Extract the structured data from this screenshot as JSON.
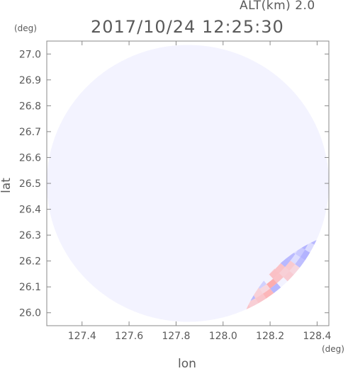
{
  "header": {
    "altitude": "ALT(km) 2.0",
    "datetime": "2017/10/24 12:25:30"
  },
  "colors": {
    "positive": "#ff9c9c",
    "negative": "#a6a6ff",
    "neutral": "#f3f3ff",
    "axis": "#888888",
    "text": "#5a5a5a"
  },
  "chart_data": {
    "type": "heatmap",
    "subtype": "polar radar scan (alternating positive/negative field)",
    "xlabel": "lon",
    "ylabel": "lat",
    "x_unit": "(deg)",
    "y_unit": "(deg)",
    "xlim": [
      127.25,
      128.45
    ],
    "ylim": [
      25.95,
      27.05
    ],
    "xticks": [
      127.4,
      127.6,
      127.8,
      128.0,
      128.2,
      128.4
    ],
    "xtick_labels": [
      "127.4",
      "127.6",
      "127.8",
      "128.0",
      "128.2",
      "128.4"
    ],
    "yticks": [
      26.0,
      26.1,
      26.2,
      26.3,
      26.4,
      26.5,
      26.6,
      26.7,
      26.8,
      26.9,
      27.0
    ],
    "ytick_labels": [
      "26.0",
      "26.1",
      "26.2",
      "26.3",
      "26.4",
      "26.5",
      "26.6",
      "26.7",
      "26.8",
      "26.9",
      "27.0"
    ],
    "scan_center": [
      127.85,
      26.5
    ],
    "scan_radius_deg_lon": 0.6,
    "scan_radius_deg_lat": 0.535,
    "grid": false,
    "legend": "none"
  }
}
